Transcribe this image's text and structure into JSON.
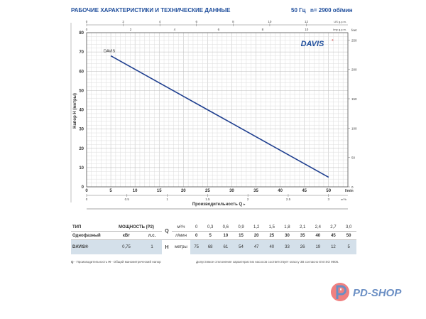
{
  "header": {
    "title": "РАБОЧИЕ ХАРАКТЕРИСТИКИ И ТЕХНИЧЕСКИЕ ДАННЫЕ",
    "frequency": "50 Гц",
    "speed": "n= 2900 об/мин"
  },
  "chart_data": {
    "type": "line",
    "xlabel": "Производительность Q",
    "ylabel": "Напор H (метры)",
    "x_unit": "l/min",
    "xlim": [
      0,
      54
    ],
    "ylim": [
      0,
      80
    ],
    "x_ticks": [
      0,
      5,
      10,
      15,
      20,
      25,
      30,
      35,
      40,
      45,
      50
    ],
    "y_ticks": [
      0,
      10,
      20,
      30,
      40,
      50,
      60,
      70,
      80
    ],
    "grid": true,
    "secondary_axes": {
      "us_gpm": {
        "label": "US g.p.m.",
        "ticks": [
          0,
          2,
          4,
          6,
          8,
          10,
          12
        ]
      },
      "imp_gpm": {
        "label": "Imp g.p.m.",
        "ticks": [
          0,
          2,
          4,
          6,
          8,
          10
        ]
      },
      "m3h": {
        "label": "m³/h",
        "ticks": [
          "0",
          "0.5",
          "1",
          "1.5",
          "2",
          "2.5",
          "3"
        ]
      },
      "feet": {
        "label": "feet",
        "ticks": [
          0,
          50,
          100,
          150,
          200,
          250
        ]
      }
    },
    "series": [
      {
        "name": "DAVIS",
        "color": "#1f3f8f",
        "x": [
          5,
          10,
          15,
          20,
          25,
          30,
          35,
          40,
          45,
          50
        ],
        "y": [
          68,
          61,
          54,
          47,
          40,
          33,
          26,
          19,
          12,
          5
        ]
      }
    ],
    "brand_logo": "DAVIS®"
  },
  "table": {
    "type_label": "ТИП",
    "phase_label": "Однофазный",
    "power_label": "МОЩНОСТЬ (P2)",
    "kw_label": "кВт",
    "hp_label": "л.с.",
    "q_label": "Q",
    "q_unit1": "м³/ч",
    "q_unit2": "л/мин",
    "h_label": "H",
    "h_unit": "метры",
    "q_m3h": [
      "0",
      "0,3",
      "0,6",
      "0,9",
      "1,2",
      "1,5",
      "1,8",
      "2,1",
      "2,4",
      "2,7",
      "3,0"
    ],
    "q_lmin": [
      "0",
      "5",
      "10",
      "15",
      "20",
      "25",
      "30",
      "35",
      "40",
      "45",
      "50"
    ],
    "model": "DAVIS®",
    "kw": "0,75",
    "hp": "1",
    "h_values": [
      "75",
      "68",
      "61",
      "54",
      "47",
      "40",
      "33",
      "26",
      "19",
      "12",
      "5"
    ]
  },
  "notes": {
    "left_q": "Q",
    "left_q_text": " - Производительность  ",
    "left_h": "H",
    "left_h_text": " - Общий манометрический напор",
    "right": "Допустимое отклонение характеристик насосов соответствует классу 3B согласно EN ISO 9906."
  },
  "logo": {
    "text": "PD-SHOP"
  }
}
